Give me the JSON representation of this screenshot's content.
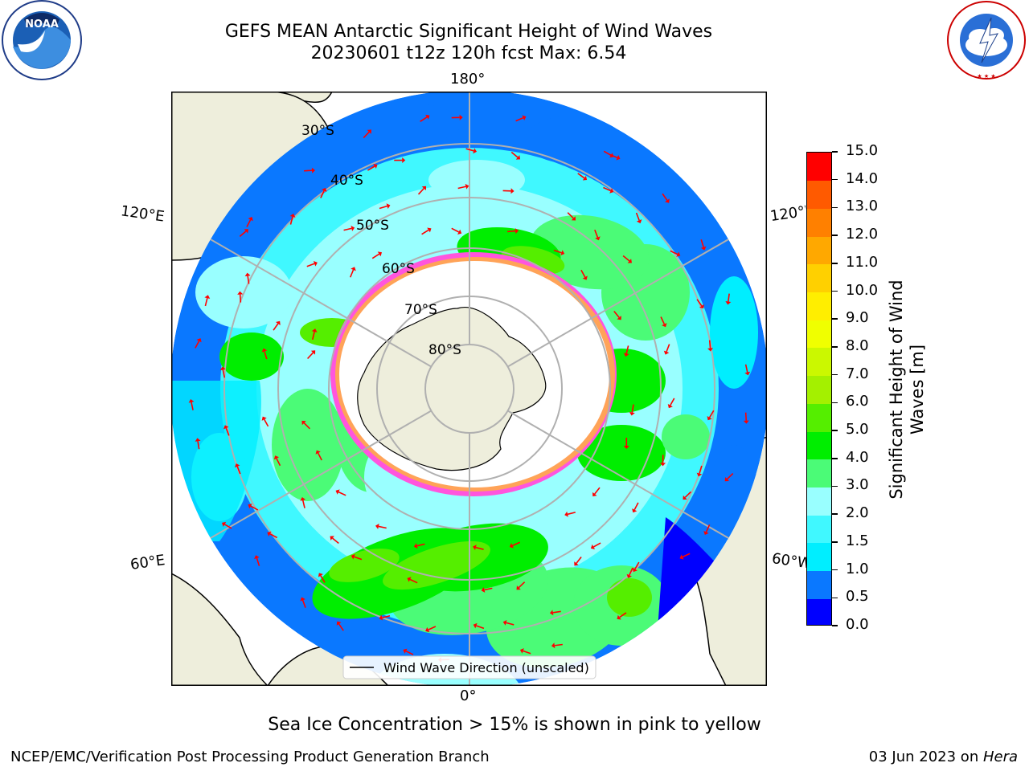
{
  "header": {
    "title_line1": "GEFS MEAN Antarctic Significant Height of Wind Waves",
    "title_line2": "20230601 t12z 120h fcst   Max: 6.54"
  },
  "logos": {
    "left": "NOAA",
    "right": "NATIONAL WEATHER SERVICE"
  },
  "map": {
    "projection": "south-polar-stereographic",
    "lat_labels": [
      "30°S",
      "40°S",
      "50°S",
      "60°S",
      "70°S",
      "80°S"
    ],
    "lon_labels": {
      "top": "180°",
      "bottom": "0°",
      "left_upper": "120°E",
      "left_lower": "60°E",
      "right_upper": "120°W",
      "right_lower": "60°W"
    },
    "legend_label": "Wind Wave Direction (unscaled)",
    "colors": {
      "land": "#eeeedc",
      "ice": "#ffffff",
      "arrow": "#ff0000"
    }
  },
  "colorbar": {
    "title": "Significant Height of Wind Waves [m]",
    "title_line1": "Significant Height of Wind",
    "title_line2": "Waves [m]",
    "ticks": [
      "0.0",
      "0.5",
      "1.0",
      "1.5",
      "2.0",
      "3.0",
      "4.0",
      "5.0",
      "6.0",
      "7.0",
      "8.0",
      "9.0",
      "10.0",
      "11.0",
      "12.0",
      "13.0",
      "14.0",
      "15.0"
    ],
    "colors": [
      "#0000ff",
      "#0a78ff",
      "#00eeff",
      "#40f8ff",
      "#99ffff",
      "#4bfb77",
      "#00ee00",
      "#55ee00",
      "#a4f000",
      "#cbf800",
      "#f0ff00",
      "#ffee00",
      "#ffd000",
      "#ffa800",
      "#ff8000",
      "#ff5a00",
      "#ff0000"
    ]
  },
  "footnote": "Sea Ice Concentration > 15% is shown in pink to yellow",
  "footer": {
    "left": "NCEP/EMC/Verification Post Processing Product Generation Branch",
    "right_date": "03 Jun 2023 on ",
    "right_host": "Hera"
  }
}
